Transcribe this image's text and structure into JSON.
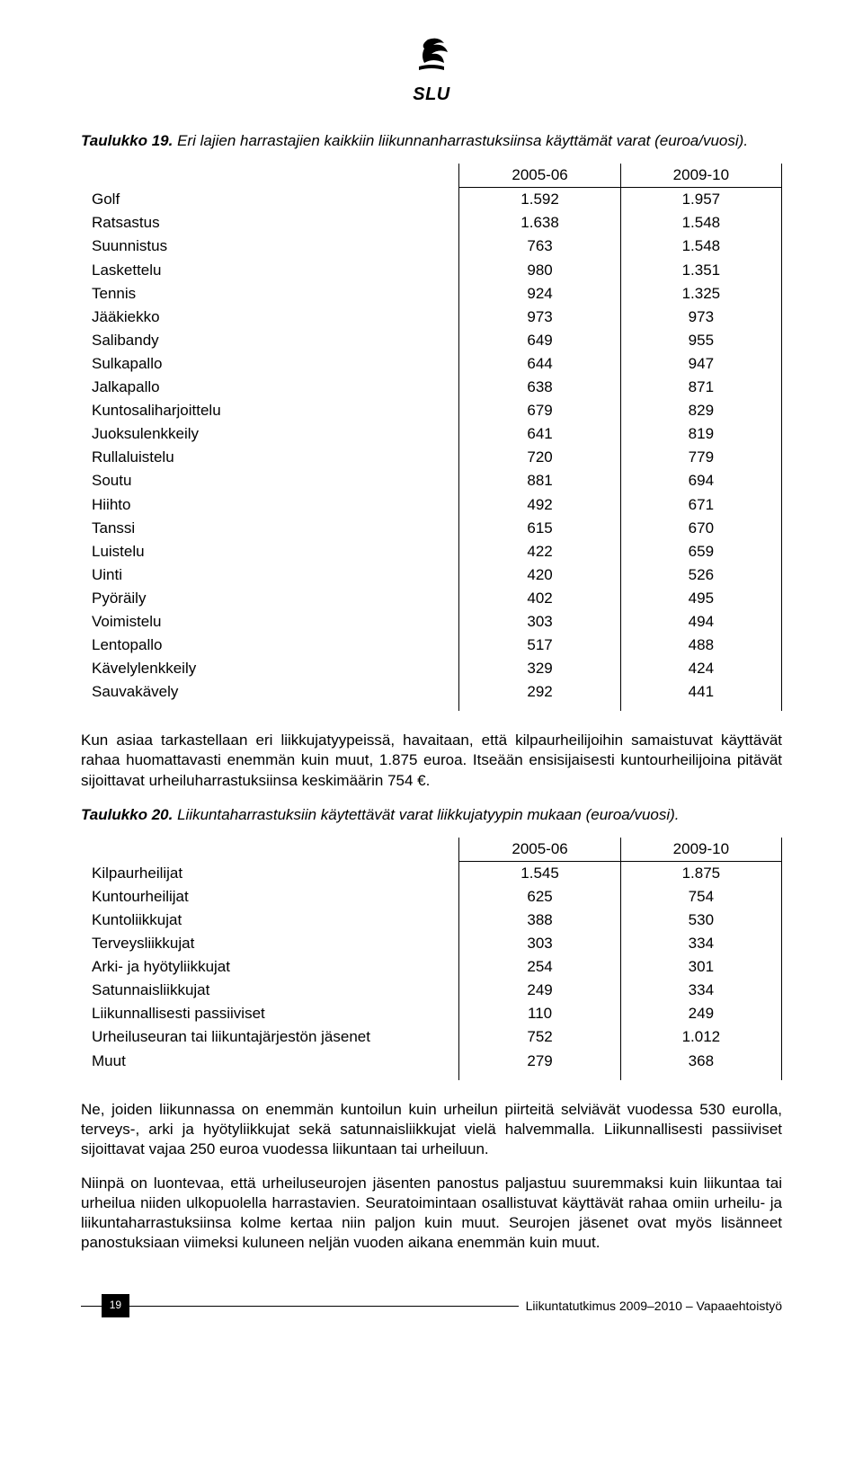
{
  "logo": {
    "text": "SLU"
  },
  "table1": {
    "caption_label": "Taulukko 19.",
    "caption_text": "Eri lajien harrastajien kaikkiin liikunnanharrastuksiinsa käyttämät varat (euroa/vuosi).",
    "columns": [
      "2005-06",
      "2009-10"
    ],
    "rows": [
      [
        "Golf",
        "1.592",
        "1.957"
      ],
      [
        "Ratsastus",
        "1.638",
        "1.548"
      ],
      [
        "Suunnistus",
        "763",
        "1.548"
      ],
      [
        "Laskettelu",
        "980",
        "1.351"
      ],
      [
        "Tennis",
        "924",
        "1.325"
      ],
      [
        "Jääkiekko",
        "973",
        "973"
      ],
      [
        "Salibandy",
        "649",
        "955"
      ],
      [
        "Sulkapallo",
        "644",
        "947"
      ],
      [
        "Jalkapallo",
        "638",
        "871"
      ],
      [
        "Kuntosaliharjoittelu",
        "679",
        "829"
      ],
      [
        "Juoksulenkkeily",
        "641",
        "819"
      ],
      [
        "Rullaluistelu",
        "720",
        "779"
      ],
      [
        "Soutu",
        "881",
        "694"
      ],
      [
        "Hiihto",
        "492",
        "671"
      ],
      [
        "Tanssi",
        "615",
        "670"
      ],
      [
        "Luistelu",
        "422",
        "659"
      ],
      [
        "Uinti",
        "420",
        "526"
      ],
      [
        "Pyöräily",
        "402",
        "495"
      ],
      [
        "Voimistelu",
        "303",
        "494"
      ],
      [
        "Lentopallo",
        "517",
        "488"
      ],
      [
        "Kävelylenkkeily",
        "329",
        "424"
      ],
      [
        "Sauvakävely",
        "292",
        "441"
      ]
    ]
  },
  "para1": "Kun asiaa tarkastellaan eri liikkujatyypeissä, havaitaan, että kilpaurheilijoihin samaistuvat käyttävät rahaa huomattavasti enemmän kuin muut, 1.875 euroa. Itseään ensisijaisesti kuntourheilijoina pitävät sijoittavat urheiluharrastuksiinsa keskimäärin 754 €.",
  "table2": {
    "caption_label": "Taulukko 20.",
    "caption_text": "Liikuntaharrastuksiin käytettävät varat liikkujatyypin mukaan (euroa/vuosi).",
    "columns": [
      "2005-06",
      "2009-10"
    ],
    "rows": [
      [
        "Kilpaurheilijat",
        "1.545",
        "1.875"
      ],
      [
        "Kuntourheilijat",
        "625",
        "754"
      ],
      [
        "Kuntoliikkujat",
        "388",
        "530"
      ],
      [
        "Terveysliikkujat",
        "303",
        "334"
      ],
      [
        "Arki- ja hyötyliikkujat",
        "254",
        "301"
      ],
      [
        "Satunnaisliikkujat",
        "249",
        "334"
      ],
      [
        "Liikunnallisesti passiiviset",
        "110",
        "249"
      ],
      [
        "Urheiluseuran tai liikuntajärjestön jäsenet",
        "752",
        "1.012"
      ],
      [
        "Muut",
        "279",
        "368"
      ]
    ]
  },
  "para2": "Ne, joiden liikunnassa on enemmän kuntoilun kuin urheilun piirteitä selviävät vuodessa 530 eurolla, terveys-, arki ja hyötyliikkujat sekä satunnaisliikkujat vielä halvemmalla. Liikunnallisesti passiiviset sijoittavat vajaa 250 euroa vuodessa liikuntaan tai urheiluun.",
  "para3": "Niinpä on luontevaa, että urheiluseurojen jäsenten panostus paljastuu suuremmaksi kuin liikuntaa tai urheilua niiden ulkopuolella harrastavien. Seuratoimintaan osallistuvat käyttävät rahaa omiin urheilu- ja liikuntaharrastuksiinsa kolme kertaa niin paljon kuin muut. Seurojen jäsenet ovat myös lisänneet panostuksiaan viimeksi kuluneen neljän vuoden aikana enemmän kuin muut.",
  "footer": {
    "page": "19",
    "text": "Liikuntatutkimus 2009–2010 – Vapaaehtoistyö"
  }
}
